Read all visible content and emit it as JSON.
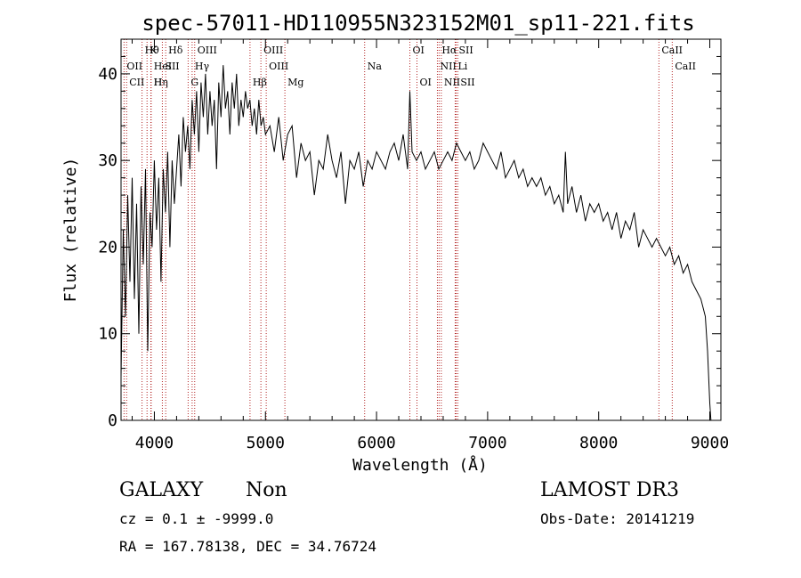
{
  "chart_data": {
    "type": "line",
    "title": "spec-57011-HD110955N323152M01_sp11-221.fits",
    "xlabel": "Wavelength (Å)",
    "ylabel": "Flux (relative)",
    "xlim": [
      3700,
      9100
    ],
    "ylim": [
      0,
      44
    ],
    "xticks": [
      4000,
      5000,
      6000,
      7000,
      8000,
      9000
    ],
    "yticks": [
      0,
      10,
      20,
      30,
      40
    ],
    "grid": false,
    "series": [
      {
        "name": "flux",
        "x": [
          3700,
          3720,
          3740,
          3760,
          3780,
          3800,
          3820,
          3840,
          3860,
          3880,
          3900,
          3920,
          3940,
          3960,
          3980,
          4000,
          4020,
          4040,
          4060,
          4080,
          4100,
          4120,
          4140,
          4160,
          4180,
          4200,
          4220,
          4240,
          4260,
          4280,
          4300,
          4320,
          4340,
          4360,
          4380,
          4400,
          4420,
          4440,
          4460,
          4480,
          4500,
          4520,
          4540,
          4560,
          4580,
          4600,
          4620,
          4640,
          4660,
          4680,
          4700,
          4720,
          4740,
          4760,
          4780,
          4800,
          4820,
          4840,
          4860,
          4880,
          4900,
          4920,
          4940,
          4960,
          4980,
          5000,
          5040,
          5080,
          5120,
          5160,
          5200,
          5240,
          5280,
          5320,
          5360,
          5400,
          5440,
          5480,
          5520,
          5560,
          5600,
          5640,
          5680,
          5720,
          5760,
          5800,
          5840,
          5880,
          5920,
          5960,
          6000,
          6040,
          6080,
          6120,
          6160,
          6200,
          6240,
          6280,
          6300,
          6320,
          6360,
          6400,
          6440,
          6480,
          6520,
          6560,
          6600,
          6640,
          6680,
          6720,
          6760,
          6800,
          6840,
          6880,
          6920,
          6960,
          7000,
          7040,
          7080,
          7120,
          7160,
          7200,
          7240,
          7280,
          7320,
          7360,
          7400,
          7440,
          7480,
          7520,
          7560,
          7600,
          7640,
          7680,
          7700,
          7720,
          7760,
          7800,
          7840,
          7880,
          7920,
          7960,
          8000,
          8040,
          8080,
          8120,
          8160,
          8200,
          8240,
          8280,
          8320,
          8360,
          8400,
          8440,
          8480,
          8520,
          8560,
          8600,
          8640,
          8680,
          8720,
          8760,
          8800,
          8840,
          8880,
          8920,
          8940,
          8960,
          8980,
          9000,
          9010
        ],
        "values": [
          5,
          22,
          12,
          26,
          16,
          28,
          14,
          25,
          10,
          27,
          18,
          29,
          8,
          24,
          20,
          30,
          22,
          28,
          16,
          29,
          24,
          31,
          20,
          30,
          25,
          29,
          33,
          27,
          35,
          31,
          34,
          29,
          37,
          33,
          38,
          31,
          39,
          35,
          40,
          33,
          38,
          34,
          37,
          29,
          39,
          35,
          41,
          36,
          38,
          33,
          39,
          36,
          40,
          34,
          37,
          35,
          38,
          36,
          37,
          34,
          36,
          33,
          37,
          34,
          35,
          33,
          34,
          31,
          35,
          30,
          33,
          34,
          28,
          32,
          30,
          31,
          26,
          30,
          29,
          33,
          30,
          28,
          31,
          25,
          30,
          29,
          31,
          27,
          30,
          29,
          31,
          30,
          29,
          31,
          32,
          30,
          33,
          29,
          38,
          31,
          30,
          31,
          29,
          30,
          31,
          29,
          30,
          31,
          30,
          32,
          31,
          30,
          31,
          29,
          30,
          32,
          31,
          30,
          29,
          31,
          28,
          29,
          30,
          28,
          29,
          27,
          28,
          27,
          28,
          26,
          27,
          25,
          26,
          24,
          31,
          25,
          27,
          24,
          26,
          23,
          25,
          24,
          25,
          23,
          24,
          22,
          24,
          21,
          23,
          22,
          24,
          20,
          22,
          21,
          20,
          21,
          20,
          19,
          20,
          18,
          19,
          17,
          18,
          16,
          15,
          14,
          13,
          12,
          8,
          2,
          0
        ]
      }
    ],
    "lines": [
      {
        "x": 3727,
        "row": 1,
        "label": "OII"
      },
      {
        "x": 3750,
        "row": 2,
        "label": "CII"
      },
      {
        "x": 3889,
        "row": 0,
        "label": "Hθ"
      },
      {
        "x": 3934,
        "row": 0,
        "label": "K"
      },
      {
        "x": 3970,
        "row": 1,
        "label": "HeI"
      },
      {
        "x": 3970,
        "row": 2,
        "label": "Hη"
      },
      {
        "x": 3969,
        "row": 2,
        "label": "H"
      },
      {
        "x": 4102,
        "row": 0,
        "label": "Hδ"
      },
      {
        "x": 4072,
        "row": 1,
        "label": "SII"
      },
      {
        "x": 4363,
        "row": 0,
        "label": "OIII"
      },
      {
        "x": 4340,
        "row": 1,
        "label": "Hγ"
      },
      {
        "x": 4304,
        "row": 2,
        "label": "G"
      },
      {
        "x": 4959,
        "row": 0,
        "label": "OIII"
      },
      {
        "x": 5007,
        "row": 1,
        "label": "OIII"
      },
      {
        "x": 4861,
        "row": 2,
        "label": "Hβ"
      },
      {
        "x": 5175,
        "row": 2,
        "label": "Mg"
      },
      {
        "x": 5893,
        "row": 1,
        "label": "Na"
      },
      {
        "x": 6300,
        "row": 0,
        "label": "OI"
      },
      {
        "x": 6364,
        "row": 2,
        "label": "OI"
      },
      {
        "x": 6563,
        "row": 0,
        "label": "Hα"
      },
      {
        "x": 6548,
        "row": 1,
        "label": "NII"
      },
      {
        "x": 6583,
        "row": 2,
        "label": "NII"
      },
      {
        "x": 6716,
        "row": 0,
        "label": "SII"
      },
      {
        "x": 6708,
        "row": 1,
        "label": "Li"
      },
      {
        "x": 6731,
        "row": 2,
        "label": "SII"
      },
      {
        "x": 8542,
        "row": 0,
        "label": "CaII"
      },
      {
        "x": 8662,
        "row": 1,
        "label": "CaII"
      }
    ]
  },
  "info": {
    "class": "GALAXY",
    "subclass": "Non",
    "survey": "LAMOST DR3",
    "cz": "cz = 0.1 ± -9999.0",
    "obs_date": "Obs-Date: 20141219",
    "coords": "RA = 167.78138, DEC =  34.76724"
  }
}
